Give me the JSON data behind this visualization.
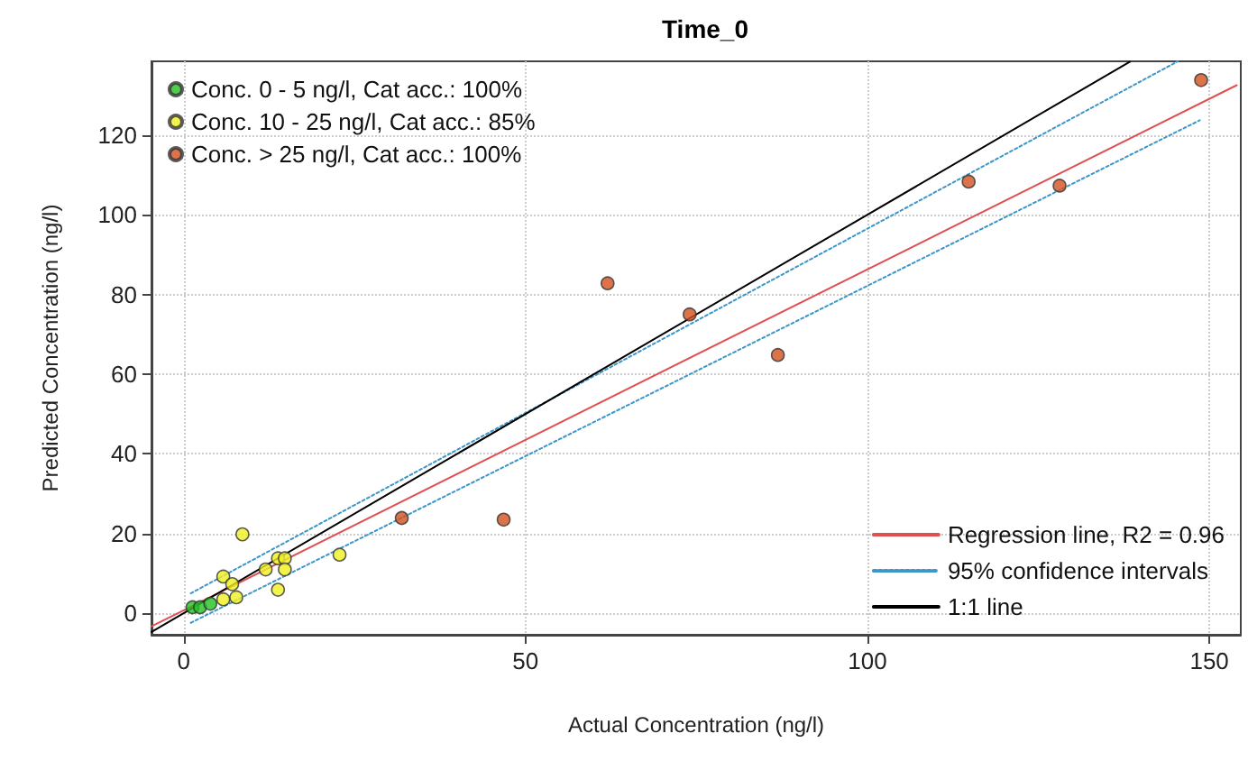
{
  "chart_data": {
    "type": "scatter",
    "title": "Time_0",
    "xlabel": "Actual Concentration (ng/l)",
    "ylabel": "Predicted Concentration (ng/l)",
    "xlim": [
      -4.7,
      154.6
    ],
    "ylim": [
      -5.4,
      138.5
    ],
    "xticks": [
      0,
      50,
      100,
      150
    ],
    "yticks": [
      0,
      20,
      40,
      60,
      80,
      100,
      120
    ],
    "grid": true,
    "legend": "top left",
    "series": [
      {
        "name": "Conc. 0 - 5 ng/l, Cat acc.: 100%",
        "color": "#22c022",
        "marker": "circle",
        "x": [
          1.3,
          2.4,
          3.9
        ],
        "values": [
          1.5,
          1.5,
          2.4
        ]
      },
      {
        "name": "Conc. 10 - 25 ng/l, Cat acc.: 85%",
        "color": "#f0f020",
        "marker": "circle",
        "x": [
          8.6,
          5.8,
          7.1,
          5.8,
          7.7,
          12.0,
          13.8,
          14.8,
          14.8,
          13.8,
          22.8
        ],
        "values": [
          19.8,
          9.2,
          7.3,
          3.5,
          4.0,
          11.0,
          13.8,
          13.8,
          11.0,
          5.9,
          14.7
        ]
      },
      {
        "name": "Conc. > 25 ng/l, Cat acc.: 100%",
        "color": "#d2501e",
        "marker": "circle",
        "x": [
          31.9,
          46.8,
          62.0,
          74.0,
          86.9,
          114.8,
          128.1,
          148.8
        ],
        "values": [
          23.9,
          23.5,
          82.8,
          75.0,
          64.8,
          108.3,
          107.3,
          133.8
        ]
      },
      {
        "type": "line",
        "name": "Regression line, R2 = 0.96",
        "color": "#e05050",
        "line_style": "solid",
        "x": [
          -4.7,
          154.0
        ],
        "values": [
          -3.3,
          132.5
        ]
      },
      {
        "type": "line",
        "name": "95% confidence intervals",
        "color": "#3c96c8",
        "line_style": "dotted",
        "x": [
          1.05,
          145.4
        ],
        "values": [
          5.0,
          138.5
        ]
      },
      {
        "type": "line",
        "color": "#3c96c8",
        "line_style": "dotted",
        "x": [
          1.05,
          148.6
        ],
        "values": [
          -2.4,
          123.7
        ]
      },
      {
        "type": "line",
        "name": "1:1 line",
        "color": "#000000",
        "line_style": "solid",
        "x": [
          -4.7,
          138.4
        ],
        "values": [
          -4.7,
          138.4
        ]
      }
    ]
  }
}
